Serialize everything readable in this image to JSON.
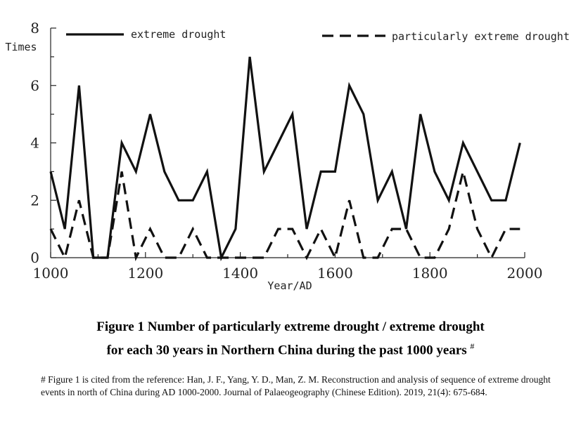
{
  "chart_data": {
    "type": "line",
    "x": [
      1000,
      1030,
      1060,
      1090,
      1120,
      1150,
      1180,
      1210,
      1240,
      1270,
      1300,
      1330,
      1360,
      1390,
      1420,
      1450,
      1480,
      1510,
      1540,
      1570,
      1600,
      1630,
      1660,
      1690,
      1720,
      1750,
      1780,
      1810,
      1840,
      1870,
      1900,
      1930,
      1960,
      1990
    ],
    "series": [
      {
        "name": "extreme drought",
        "style": "solid",
        "values": [
          3,
          1,
          6,
          0,
          0,
          4,
          3,
          5,
          3,
          2,
          2,
          3,
          0,
          1,
          7,
          3,
          4,
          5,
          1,
          3,
          3,
          6,
          5,
          2,
          3,
          1,
          5,
          3,
          2,
          4,
          3,
          2,
          2,
          4
        ]
      },
      {
        "name": "particularly extreme drought",
        "style": "dashed",
        "values": [
          1,
          0,
          2,
          0,
          0,
          3,
          0,
          1,
          0,
          0,
          1,
          0,
          0,
          0,
          0,
          0,
          1,
          1,
          0,
          1,
          0,
          2,
          0,
          0,
          1,
          1,
          0,
          0,
          1,
          3,
          1,
          0,
          1,
          1
        ]
      }
    ],
    "ylabel": "Times",
    "xlabel": "Year/AD",
    "xlim": [
      1000,
      2000
    ],
    "ylim": [
      0,
      8
    ],
    "x_ticks": [
      "1000",
      "1200",
      "1400",
      "1600",
      "1800",
      "2000"
    ],
    "y_ticks": [
      "0",
      "2",
      "4",
      "6",
      "8"
    ],
    "grid": false,
    "legend_position": "top"
  },
  "caption": {
    "line1": "Figure 1  Number of particularly extreme drought / extreme drought",
    "line2": "for each 30 years in Northern China during the past 1000 years",
    "mark": "#"
  },
  "note": "# Figure 1 is cited from the reference: Han, J. F., Yang, Y. D., Man, Z. M. Reconstruction and analysis of sequence of extreme drought events in north of China during AD 1000-2000. Journal of Palaeogeography (Chinese Edition). 2019, 21(4): 675-684."
}
